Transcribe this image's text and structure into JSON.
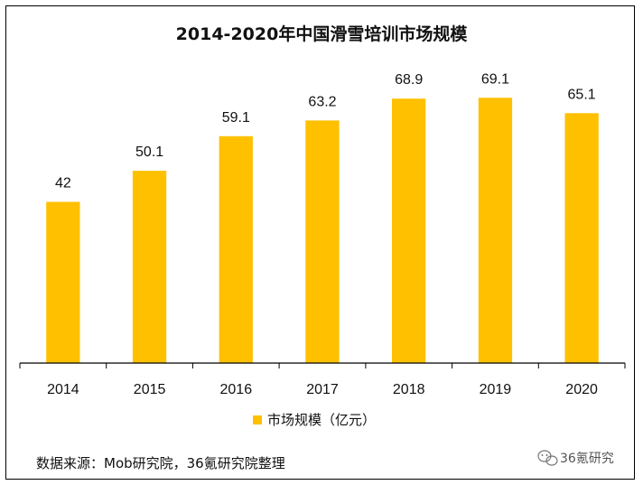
{
  "colors": {
    "bar": "#FFC000",
    "axis": "#000000",
    "text": "#111111"
  },
  "chart_data": {
    "type": "bar",
    "title": "2014-2020年中国滑雪培训市场规模",
    "categories": [
      "2014",
      "2015",
      "2016",
      "2017",
      "2018",
      "2019",
      "2020"
    ],
    "series": [
      {
        "name": "市场规模（亿元）",
        "values": [
          42,
          50.1,
          59.1,
          63.2,
          68.9,
          69.1,
          65.1
        ]
      }
    ],
    "value_labels": [
      "42",
      "50.1",
      "59.1",
      "63.2",
      "68.9",
      "69.1",
      "65.1"
    ],
    "ylim": [
      0,
      80
    ],
    "grid": false,
    "legend_position": "bottom"
  },
  "source_text": "数据来源：Mob研究院，36氪研究院整理",
  "watermark": {
    "icon": "wechat-icon",
    "text": "36氪研究"
  }
}
